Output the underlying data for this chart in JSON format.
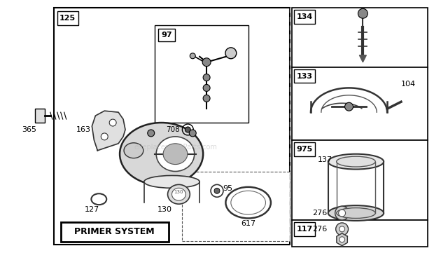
{
  "bg_color": "#ffffff",
  "watermark": "eReplacementParts.com",
  "fig_w": 6.2,
  "fig_h": 3.61,
  "dpi": 100
}
